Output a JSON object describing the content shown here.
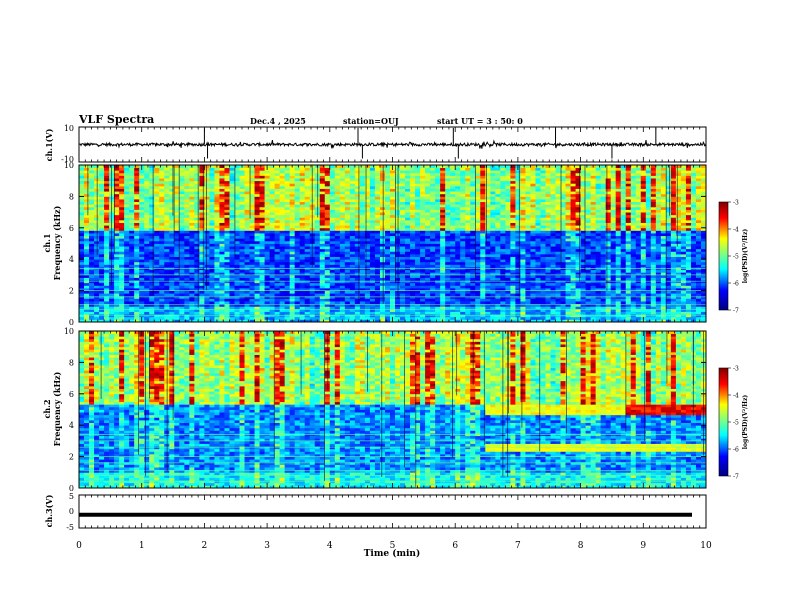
{
  "header": {
    "title": "VLF Spectra",
    "date": "Dec.4 , 2025",
    "station": "station=OUJ",
    "start_ut": "start UT = 3 : 50: 0"
  },
  "colors": {
    "jet": [
      "#00007f",
      "#0000ff",
      "#00ffff",
      "#80ff80",
      "#ffff00",
      "#ff0000",
      "#7f0000"
    ],
    "trace": "#000000",
    "frame": "#000000"
  },
  "chart_data": [
    {
      "type": "line",
      "panel": "ch1-waveform",
      "ylabel": "ch.1(V)",
      "ylim": [
        -10,
        10
      ],
      "yticklabels": [
        "10",
        "-10"
      ],
      "xlim": [
        0,
        10
      ],
      "baseline_v": 0,
      "spikes_min": [
        2.0,
        2.05,
        4.45,
        4.52,
        5.97,
        6.05,
        7.6,
        8.5,
        9.2
      ]
    },
    {
      "type": "heatmap",
      "panel": "ch1-spectrogram",
      "ylabel": "ch.1\nFrequency (kHz)",
      "ylim": [
        0,
        10
      ],
      "yticklabels": [
        "0",
        "2",
        "4",
        "6",
        "8",
        "10"
      ],
      "xlim": [
        0,
        10
      ],
      "colorbar": {
        "label": "log(PSD)(V²/Hz)",
        "range": [
          -7,
          -3
        ],
        "ticklabels": [
          "-3",
          "-4",
          "-5",
          "-6",
          "-7"
        ]
      },
      "features": {
        "background_low_freq_level_log": -6.5,
        "broadband_high_freq_level_log": -4.5,
        "boundary_khz": 5.8
      }
    },
    {
      "type": "heatmap",
      "panel": "ch2-spectrogram",
      "ylabel": "ch.2\nFrequency (kHz)",
      "ylim": [
        0,
        10
      ],
      "yticklabels": [
        "0",
        "2",
        "4",
        "6",
        "8",
        "10"
      ],
      "xlim": [
        0,
        10
      ],
      "colorbar": {
        "label": "log(PSD)(V²/Hz)",
        "range": [
          -7,
          -3
        ],
        "ticklabels": [
          "-3",
          "-4",
          "-5",
          "-6",
          "-7"
        ]
      },
      "features": {
        "band_5khz_start_min": 6.5,
        "band_5khz_strong_start_min": 8.7,
        "band_2_5khz_start_min": 6.5
      }
    },
    {
      "type": "line",
      "panel": "ch3-waveform",
      "ylabel": "ch.3(V)",
      "ylim": [
        -5,
        5
      ],
      "yticklabels": [
        "5",
        "0",
        "-5"
      ],
      "xlim": [
        0,
        10
      ],
      "level_v": -1
    }
  ],
  "xaxis": {
    "label": "Time (min)",
    "ticklabels": [
      "0",
      "1",
      "2",
      "3",
      "4",
      "5",
      "6",
      "7",
      "8",
      "9",
      "10"
    ],
    "range": [
      0,
      10
    ]
  }
}
